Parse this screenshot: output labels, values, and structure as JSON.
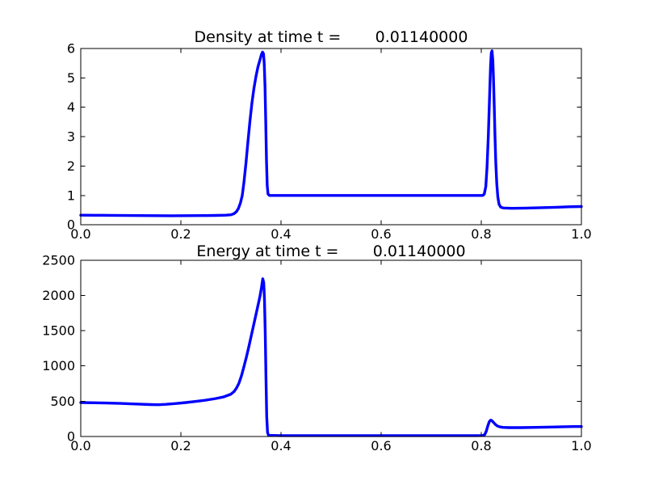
{
  "figure": {
    "background": "#ffffff",
    "axis_color": "#000000",
    "tick_label_color": "#000000",
    "line_color": "#0000ff"
  },
  "chart_data": [
    {
      "type": "line",
      "title": "Density at time t =       0.01140000",
      "xlabel": "",
      "ylabel": "",
      "xlim": [
        0.0,
        1.0
      ],
      "ylim": [
        0,
        6
      ],
      "grid": false,
      "legend": "none",
      "xticks": [
        {
          "value": 0.0,
          "label": "0.0"
        },
        {
          "value": 0.2,
          "label": "0.2"
        },
        {
          "value": 0.4,
          "label": "0.4"
        },
        {
          "value": 0.6,
          "label": "0.6"
        },
        {
          "value": 0.8,
          "label": "0.8"
        },
        {
          "value": 1.0,
          "label": "1.0"
        }
      ],
      "yticks": [
        {
          "value": 0,
          "label": "0"
        },
        {
          "value": 1,
          "label": "1"
        },
        {
          "value": 2,
          "label": "2"
        },
        {
          "value": 3,
          "label": "3"
        },
        {
          "value": 4,
          "label": "4"
        },
        {
          "value": 5,
          "label": "5"
        },
        {
          "value": 6,
          "label": "6"
        }
      ],
      "series": [
        {
          "name": "density",
          "color": "#0000ff",
          "linewidth": 3.4,
          "points": [
            [
              0.0,
              0.33
            ],
            [
              0.03,
              0.328
            ],
            [
              0.06,
              0.325
            ],
            [
              0.09,
              0.32
            ],
            [
              0.12,
              0.316
            ],
            [
              0.15,
              0.313
            ],
            [
              0.18,
              0.312
            ],
            [
              0.21,
              0.313
            ],
            [
              0.24,
              0.317
            ],
            [
              0.27,
              0.322
            ],
            [
              0.29,
              0.33
            ],
            [
              0.3,
              0.345
            ],
            [
              0.306,
              0.38
            ],
            [
              0.311,
              0.45
            ],
            [
              0.315,
              0.56
            ],
            [
              0.319,
              0.75
            ],
            [
              0.3225,
              1.0
            ],
            [
              0.326,
              1.45
            ],
            [
              0.33,
              2.1
            ],
            [
              0.334,
              2.85
            ],
            [
              0.338,
              3.55
            ],
            [
              0.342,
              4.15
            ],
            [
              0.346,
              4.65
            ],
            [
              0.35,
              5.05
            ],
            [
              0.354,
              5.38
            ],
            [
              0.358,
              5.62
            ],
            [
              0.361,
              5.8
            ],
            [
              0.363,
              5.88
            ],
            [
              0.365,
              5.82
            ],
            [
              0.3665,
              5.5
            ],
            [
              0.368,
              4.7
            ],
            [
              0.3695,
              3.5
            ],
            [
              0.371,
              2.2
            ],
            [
              0.3725,
              1.35
            ],
            [
              0.374,
              1.05
            ],
            [
              0.377,
              1.0
            ],
            [
              0.45,
              1.0
            ],
            [
              0.55,
              1.0
            ],
            [
              0.65,
              1.0
            ],
            [
              0.75,
              1.0
            ],
            [
              0.803,
              1.0
            ],
            [
              0.806,
              1.05
            ],
            [
              0.809,
              1.3
            ],
            [
              0.8115,
              1.95
            ],
            [
              0.814,
              3.0
            ],
            [
              0.8165,
              4.3
            ],
            [
              0.8185,
              5.4
            ],
            [
              0.82,
              5.85
            ],
            [
              0.8215,
              5.92
            ],
            [
              0.823,
              5.6
            ],
            [
              0.8245,
              4.9
            ],
            [
              0.826,
              4.0
            ],
            [
              0.8275,
              3.0
            ],
            [
              0.829,
              2.1
            ],
            [
              0.831,
              1.4
            ],
            [
              0.833,
              0.95
            ],
            [
              0.8355,
              0.7
            ],
            [
              0.839,
              0.6
            ],
            [
              0.844,
              0.575
            ],
            [
              0.86,
              0.565
            ],
            [
              0.89,
              0.572
            ],
            [
              0.92,
              0.585
            ],
            [
              0.95,
              0.6
            ],
            [
              0.975,
              0.615
            ],
            [
              1.0,
              0.625
            ]
          ]
        }
      ]
    },
    {
      "type": "line",
      "title": "Energy at time t =       0.01140000",
      "xlabel": "",
      "ylabel": "",
      "xlim": [
        0.0,
        1.0
      ],
      "ylim": [
        0,
        2500
      ],
      "grid": false,
      "legend": "none",
      "xticks": [
        {
          "value": 0.0,
          "label": "0.0"
        },
        {
          "value": 0.2,
          "label": "0.2"
        },
        {
          "value": 0.4,
          "label": "0.4"
        },
        {
          "value": 0.6,
          "label": "0.6"
        },
        {
          "value": 0.8,
          "label": "0.8"
        },
        {
          "value": 1.0,
          "label": "1.0"
        }
      ],
      "yticks": [
        {
          "value": 0,
          "label": "0"
        },
        {
          "value": 500,
          "label": "500"
        },
        {
          "value": 1000,
          "label": "1000"
        },
        {
          "value": 1500,
          "label": "1500"
        },
        {
          "value": 2000,
          "label": "2000"
        },
        {
          "value": 2500,
          "label": "2500"
        }
      ],
      "series": [
        {
          "name": "energy",
          "color": "#0000ff",
          "linewidth": 3.4,
          "points": [
            [
              0.0,
              481
            ],
            [
              0.04,
              477
            ],
            [
              0.08,
              469
            ],
            [
              0.11,
              461
            ],
            [
              0.14,
              452
            ],
            [
              0.155,
              450
            ],
            [
              0.17,
              456
            ],
            [
              0.19,
              467
            ],
            [
              0.21,
              481
            ],
            [
              0.23,
              497
            ],
            [
              0.25,
              516
            ],
            [
              0.27,
              539
            ],
            [
              0.285,
              560
            ],
            [
              0.3,
              600
            ],
            [
              0.306,
              635
            ],
            [
              0.311,
              685
            ],
            [
              0.316,
              755
            ],
            [
              0.321,
              860
            ],
            [
              0.326,
              990
            ],
            [
              0.331,
              1130
            ],
            [
              0.336,
              1280
            ],
            [
              0.341,
              1440
            ],
            [
              0.346,
              1600
            ],
            [
              0.351,
              1760
            ],
            [
              0.355,
              1890
            ],
            [
              0.358,
              1990
            ],
            [
              0.361,
              2110
            ],
            [
              0.3635,
              2235
            ],
            [
              0.3655,
              2180
            ],
            [
              0.367,
              1950
            ],
            [
              0.3685,
              1450
            ],
            [
              0.37,
              820
            ],
            [
              0.3715,
              280
            ],
            [
              0.373,
              60
            ],
            [
              0.375,
              16
            ],
            [
              0.4,
              13
            ],
            [
              0.5,
              13
            ],
            [
              0.6,
              13
            ],
            [
              0.7,
              13
            ],
            [
              0.79,
              13
            ],
            [
              0.803,
              14
            ],
            [
              0.807,
              28
            ],
            [
              0.81,
              75
            ],
            [
              0.813,
              150
            ],
            [
              0.816,
              210
            ],
            [
              0.8185,
              232
            ],
            [
              0.821,
              226
            ],
            [
              0.824,
              203
            ],
            [
              0.828,
              172
            ],
            [
              0.832,
              150
            ],
            [
              0.837,
              136
            ],
            [
              0.843,
              129
            ],
            [
              0.855,
              126
            ],
            [
              0.88,
              126
            ],
            [
              0.91,
              129
            ],
            [
              0.94,
              134
            ],
            [
              0.965,
              139
            ],
            [
              0.985,
              141
            ],
            [
              1.0,
              141
            ]
          ]
        }
      ]
    }
  ]
}
